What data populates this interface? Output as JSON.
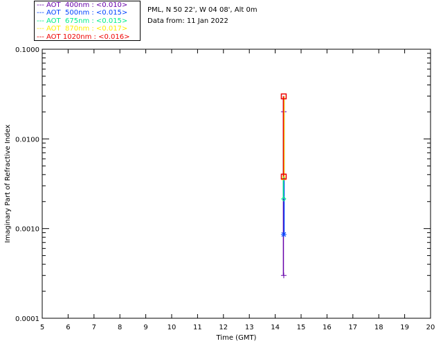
{
  "header": {
    "site": "PML, N 50 22', W 04 08', Alt 0m",
    "date": "Data from: 11 Jan 2022"
  },
  "chart_data": {
    "type": "scatter",
    "title": "",
    "xlabel": "Time (GMT)",
    "ylabel": "Imaginary Part of Refractive Index",
    "xlim": [
      5,
      20
    ],
    "ylim": [
      0.0001,
      0.1
    ],
    "yscale": "log",
    "xticks": [
      "5",
      "6",
      "7",
      "8",
      "9",
      "10",
      "11",
      "12",
      "13",
      "14",
      "15",
      "16",
      "17",
      "18",
      "19",
      "20"
    ],
    "yticks": [
      "0.0001",
      "0.0010",
      "0.0100",
      "0.1000"
    ],
    "legend_position": "top-left",
    "series": [
      {
        "name": "AOT  400nm : <0.010>",
        "color": "#6600aa",
        "marker": "plus",
        "x": [
          14.33,
          14.33
        ],
        "values": [
          0.0003,
          0.0201
        ],
        "range_top": 0.03
      },
      {
        "name": "AOT  500nm : <0.015>",
        "color": "#0044ff",
        "marker": "asterisk",
        "x": [
          14.33
        ],
        "values": [
          0.00086
        ],
        "range_top": 0.03
      },
      {
        "name": "AOT  675nm : <0.015>",
        "color": "#00ee88",
        "marker": "diamond",
        "x": [
          14.33
        ],
        "values": [
          0.00214
        ],
        "range_top": 0.0107
      },
      {
        "name": "AOT  870nm : <0.017>",
        "color": "#ffee00",
        "marker": "triangle",
        "x": [
          14.33
        ],
        "values": [
          0.0037
        ],
        "range_top": 0.03
      },
      {
        "name": "AOT 1020nm : <0.016>",
        "color": "#ee0000",
        "marker": "square",
        "x": [
          14.33,
          14.33
        ],
        "values": [
          0.0038,
          0.0298
        ],
        "range_top": 0.0298
      }
    ]
  }
}
